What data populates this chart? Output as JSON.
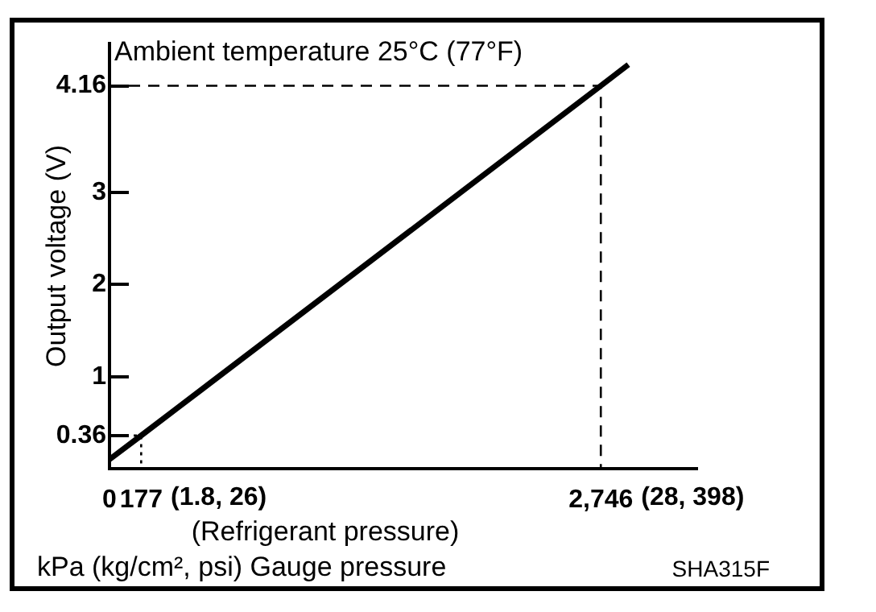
{
  "chart_data": {
    "type": "line",
    "title": "Ambient temperature 25°C (77°F)",
    "xlabel": "(Refrigerant pressure)",
    "ylabel": "Output voltage (V)",
    "annotations": [
      "kPa (kg/cm², psi) Gauge pressure",
      "SHA315F",
      {
        "text": "(1.8, 26)",
        "x": 177,
        "y": 0
      },
      {
        "text": "(28, 398)",
        "x": 2746,
        "y": 0
      }
    ],
    "series": [
      {
        "type": "line",
        "color": "#000000",
        "x": [
          0,
          177,
          2746,
          2900
        ],
        "values": [
          0.1,
          0.36,
          4.16,
          4.39
        ],
        "line_style": "solid"
      },
      {
        "type": "line",
        "color": "#000000",
        "x": [
          0,
          2746,
          2746
        ],
        "values": [
          4.16,
          4.16,
          0
        ],
        "line_style": "dashed"
      },
      {
        "type": "line",
        "color": "#000000",
        "x": [
          0,
          177,
          177
        ],
        "values": [
          0.36,
          0.36,
          0
        ],
        "line_style": "dotted"
      }
    ],
    "xlim": [
      0,
      3285
    ],
    "ylim": [
      0,
      4.62
    ],
    "xticks": [
      0,
      177,
      {
        "value": 2746,
        "label": "2,746"
      }
    ],
    "yticks": [
      0.36,
      1,
      2,
      3,
      4.16
    ],
    "marker": "none",
    "grid": false,
    "legend": false
  }
}
